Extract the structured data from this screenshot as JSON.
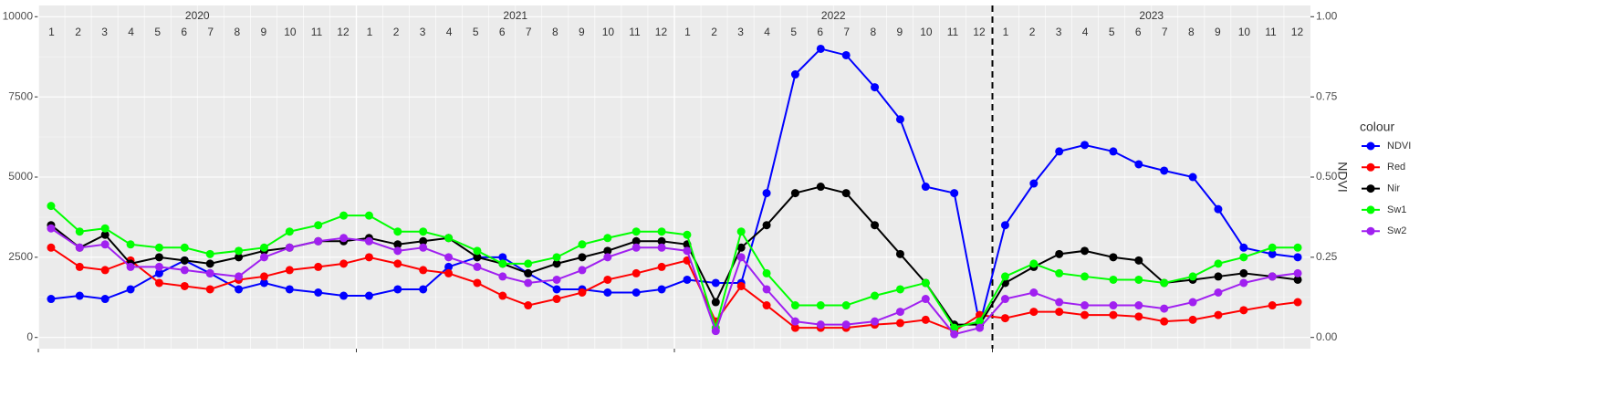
{
  "chart_data": {
    "type": "line",
    "years": [
      2020,
      2021,
      2022,
      2023
    ],
    "months": [
      1,
      2,
      3,
      4,
      5,
      6,
      7,
      8,
      9,
      10,
      11,
      12
    ],
    "x": [
      2020.04,
      2020.13,
      2020.21,
      2020.29,
      2020.38,
      2020.46,
      2020.54,
      2020.63,
      2020.71,
      2020.79,
      2020.88,
      2020.96,
      2021.04,
      2021.13,
      2021.21,
      2021.29,
      2021.38,
      2021.46,
      2021.54,
      2021.63,
      2021.71,
      2021.79,
      2021.88,
      2021.96,
      2022.04,
      2022.13,
      2022.21,
      2022.29,
      2022.38,
      2022.46,
      2022.54,
      2022.63,
      2022.71,
      2022.79,
      2022.88,
      2022.96,
      2023.04,
      2023.13,
      2023.21,
      2023.29,
      2023.38,
      2023.46,
      2023.54,
      2023.63,
      2023.71,
      2023.79,
      2023.88,
      2023.96
    ],
    "xlim": [
      2020,
      2024
    ],
    "ylim": [
      -350,
      10350
    ],
    "yticks": [
      0,
      2500,
      5000,
      7500,
      10000
    ],
    "y2lim": [
      -0.035,
      1.035
    ],
    "y2ticks": [
      {
        "value": 0,
        "label": "0.00"
      },
      {
        "value": 0.25,
        "label": "0.25"
      },
      {
        "value": 0.5,
        "label": "0.50"
      },
      {
        "value": 0.75,
        "label": "0.75"
      },
      {
        "value": 1,
        "label": "1.00"
      }
    ],
    "y2label": "NDVI",
    "vline": 2023,
    "legend_title": "colour",
    "grid": true,
    "series": [
      {
        "name": "NDVI",
        "color": "#0000ff",
        "axis": "y2",
        "values": [
          0.12,
          0.13,
          0.12,
          0.15,
          0.2,
          0.24,
          0.2,
          0.15,
          0.17,
          0.15,
          0.14,
          0.13,
          0.13,
          0.15,
          0.15,
          0.22,
          0.25,
          0.25,
          0.2,
          0.15,
          0.15,
          0.14,
          0.14,
          0.15,
          0.18,
          0.17,
          0.17,
          0.45,
          0.82,
          0.9,
          0.88,
          0.78,
          0.68,
          0.47,
          0.45,
          0.04,
          0.35,
          0.48,
          0.58,
          0.6,
          0.58,
          0.54,
          0.52,
          0.5,
          0.4,
          0.28,
          0.26,
          0.25
        ]
      },
      {
        "name": "Red",
        "color": "#ff0000",
        "values": [
          2800,
          2200,
          2100,
          2400,
          1700,
          1600,
          1500,
          1800,
          1900,
          2100,
          2200,
          2300,
          2500,
          2300,
          2100,
          2000,
          1700,
          1300,
          1000,
          1200,
          1400,
          1800,
          2000,
          2200,
          2400,
          500,
          1600,
          1000,
          300,
          300,
          300,
          400,
          450,
          550,
          200,
          700,
          600,
          800,
          800,
          700,
          700,
          650,
          500,
          550,
          700,
          850,
          1000,
          1100
        ]
      },
      {
        "name": "Nir",
        "color": "#000000",
        "values": [
          3500,
          2800,
          3200,
          2300,
          2500,
          2400,
          2300,
          2500,
          2700,
          2800,
          3000,
          3000,
          3100,
          2900,
          3000,
          3100,
          2500,
          2300,
          2000,
          2300,
          2500,
          2700,
          3000,
          3000,
          2900,
          1100,
          2800,
          3500,
          4500,
          4700,
          4500,
          3500,
          2600,
          1700,
          400,
          400,
          1700,
          2200,
          2600,
          2700,
          2500,
          2400,
          1700,
          1800,
          1900,
          2000,
          1900,
          1800
        ]
      },
      {
        "name": "Sw1",
        "color": "#00ff00",
        "values": [
          4100,
          3300,
          3400,
          2900,
          2800,
          2800,
          2600,
          2700,
          2800,
          3300,
          3500,
          3800,
          3800,
          3300,
          3300,
          3100,
          2700,
          2300,
          2300,
          2500,
          2900,
          3100,
          3300,
          3300,
          3200,
          300,
          3300,
          2000,
          1000,
          1000,
          1000,
          1300,
          1500,
          1700,
          300,
          500,
          1900,
          2300,
          2000,
          1900,
          1800,
          1800,
          1700,
          1900,
          2300,
          2500,
          2800,
          2800
        ]
      },
      {
        "name": "Sw2",
        "color": "#a020f0",
        "values": [
          3400,
          2800,
          2900,
          2200,
          2200,
          2100,
          2000,
          1900,
          2500,
          2800,
          3000,
          3100,
          3000,
          2700,
          2800,
          2500,
          2200,
          1900,
          1700,
          1800,
          2100,
          2500,
          2800,
          2800,
          2700,
          200,
          2500,
          1500,
          500,
          400,
          400,
          500,
          800,
          1200,
          100,
          300,
          1200,
          1400,
          1100,
          1000,
          1000,
          1000,
          900,
          1100,
          1400,
          1700,
          1900,
          2000
        ]
      }
    ]
  }
}
